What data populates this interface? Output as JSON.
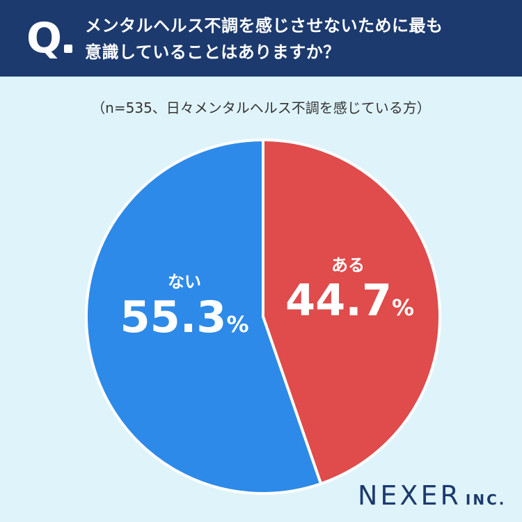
{
  "header": {
    "q_mark": "Q",
    "question_line1": "メンタルヘルス不調を感じさせないために最も",
    "question_line2": "意識していることはありますか？"
  },
  "note": "（n=535、日々メンタルヘルス不調を感じている方）",
  "chart_data": {
    "type": "pie",
    "categories": [
      "ある",
      "ない"
    ],
    "values": [
      44.7,
      55.3
    ],
    "unit": "%",
    "colors": [
      "#e04b4b",
      "#2d8ae8"
    ]
  },
  "labels": {
    "aru": {
      "cat": "ある",
      "pct": "44.7",
      "unit": "%"
    },
    "nai": {
      "cat": "ない",
      "pct": "55.3",
      "unit": "%"
    }
  },
  "logo": {
    "main": "NEXER",
    "suffix": "INC."
  }
}
